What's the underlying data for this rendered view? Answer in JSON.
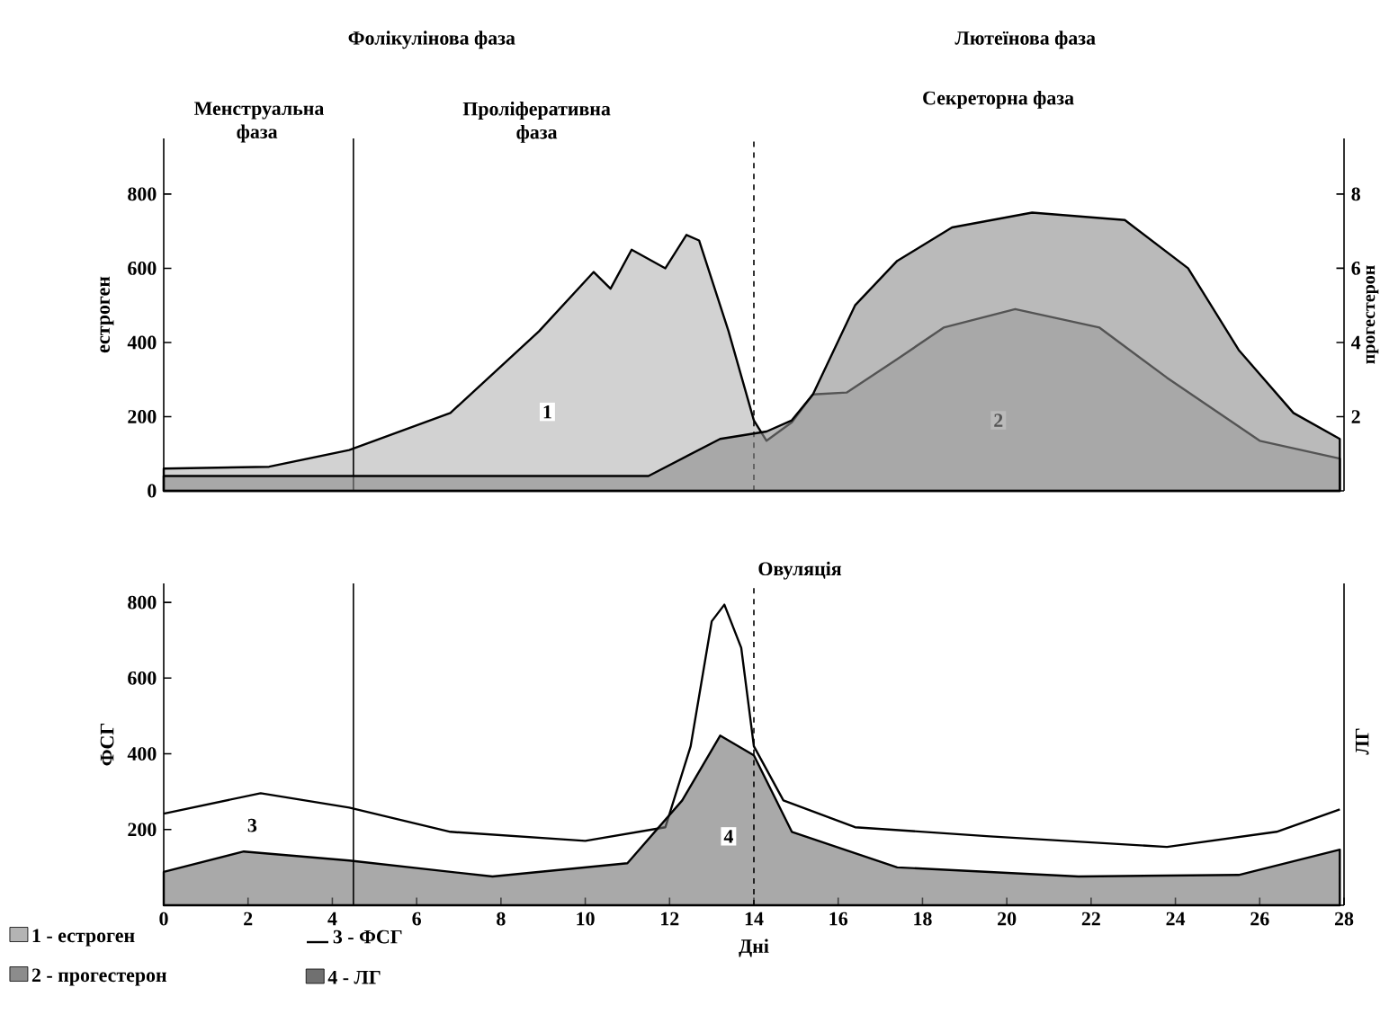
{
  "chart_data": [
    {
      "type": "area",
      "xlim": [
        0,
        28
      ],
      "ylim": [
        0,
        950
      ],
      "yticks": [
        0,
        200,
        400,
        600,
        800
      ],
      "y2lim": [
        0,
        9.5
      ],
      "y2ticks": [
        2,
        4,
        6,
        8
      ],
      "ylabel": "естроген",
      "y2label": "прогестерон",
      "tick_labels": [
        "y",
        "y2"
      ],
      "legend": "bottom left",
      "series": [
        {
          "name": "1 - естроген",
          "color": "#b4b4b4",
          "x": [
            0,
            2.5,
            4.4,
            6.8,
            8.9,
            10.2,
            10.6,
            11.1,
            11.9,
            12.4,
            12.7,
            13.4,
            14.0,
            14.3,
            14.9,
            15.4,
            16.2,
            17.4,
            18.5,
            20.2,
            22.2,
            23.8,
            26.0,
            27.9
          ],
          "values": [
            60,
            65,
            110,
            210,
            430,
            590,
            545,
            650,
            600,
            690,
            675,
            430,
            190,
            135,
            185,
            260,
            265,
            355,
            440,
            490,
            440,
            305,
            135,
            87
          ]
        },
        {
          "name": "2 - прогестерон",
          "color": "#8c8c8c",
          "axis": "y2",
          "x": [
            0,
            11.5,
            13.2,
            14.3,
            14.9,
            15.4,
            16.4,
            17.4,
            18.7,
            20.6,
            22.8,
            24.3,
            25.5,
            26.8,
            27.9
          ],
          "values": [
            0.4,
            0.4,
            1.4,
            1.6,
            1.9,
            2.6,
            5.0,
            6.2,
            7.1,
            7.5,
            7.3,
            6.0,
            3.8,
            2.1,
            1.4
          ]
        }
      ],
      "ref_lines": [
        {
          "axis": "x",
          "value": 4.5
        },
        {
          "axis": "x",
          "value": 14,
          "line_style": "dashed"
        }
      ],
      "annotations": [
        "Фолікулінова фаза",
        "Лютеїнова фаза",
        "Менструальна фаза",
        "Проліферативна фаза",
        "Секреторна фаза",
        {
          "text": "1",
          "x": 9.1,
          "y": 213
        },
        {
          "text": "2",
          "x": 19.8,
          "y": 190
        }
      ]
    },
    {
      "type": "line",
      "xlim": [
        0,
        28
      ],
      "xticks": [
        0,
        2,
        4,
        6,
        8,
        10,
        12,
        14,
        16,
        18,
        20,
        22,
        24,
        26,
        28
      ],
      "ylim": [
        0,
        850
      ],
      "yticks": [
        200,
        400,
        600,
        800
      ],
      "xlabel": "Дні",
      "ylabel": "ФСГ",
      "legend": "bottom left",
      "series": [
        {
          "name": "3 - ФСГ",
          "color": "#000000",
          "x": [
            0,
            2.3,
            4.4,
            6.8,
            10.0,
            11.9,
            12.5,
            13.0,
            13.3,
            13.7,
            14.0,
            14.7,
            16.4,
            19.6,
            23.8,
            26.4,
            27.9
          ],
          "values": [
            242,
            296,
            258,
            194,
            170,
            206,
            420,
            750,
            794,
            680,
            420,
            277,
            206,
            182,
            154,
            194,
            253
          ]
        },
        {
          "name": "4 - ЛГ",
          "type": "area",
          "color": "#707070",
          "x": [
            0,
            1.9,
            4.4,
            7.8,
            11.0,
            12.3,
            13.2,
            14.0,
            14.9,
            17.4,
            21.7,
            25.5,
            27.9
          ],
          "values": [
            88,
            142,
            118,
            76,
            111,
            277,
            448,
            396,
            194,
            100,
            76,
            80,
            147
          ]
        }
      ],
      "ref_lines": [
        {
          "axis": "x",
          "value": 4.5
        },
        {
          "axis": "x",
          "value": 14,
          "line_style": "dashed",
          "label": "Овуляція"
        }
      ],
      "annotations": [
        "ЛГ",
        {
          "text": "3",
          "x": 2.1,
          "y": 211
        },
        {
          "text": "4",
          "x": 13.4,
          "y": 182
        }
      ]
    }
  ]
}
